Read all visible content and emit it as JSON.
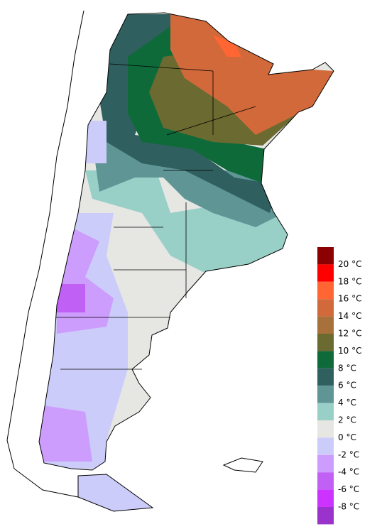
{
  "legend": {
    "labels": [
      "20 °C",
      "18 °C",
      "16 °C",
      "14 °C",
      "12 °C",
      "10 °C",
      "8 °C",
      "6 °C",
      "4 °C",
      "2 °C",
      "0 °C",
      "-2 °C",
      "-4 °C",
      "-6 °C",
      "-8 °C"
    ],
    "colors": [
      "#8b0000",
      "#ff0000",
      "#ff6633",
      "#d2693a",
      "#a8703a",
      "#6b6a30",
      "#0f6a3a",
      "#2f5f5f",
      "#5f9595",
      "#98d0c8",
      "#e6e6e3",
      "#ccccfa",
      "#cc9dfc",
      "#c060f4",
      "#cc33ff",
      "#9933cc"
    ]
  }
}
